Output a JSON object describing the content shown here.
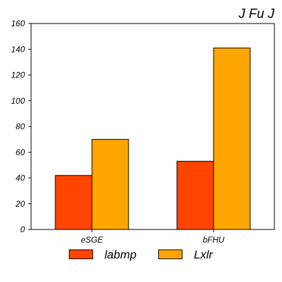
{
  "chart_data": {
    "type": "bar",
    "title": "J Fu J",
    "xlabel": "",
    "ylabel": "",
    "categories": [
      "eSGE",
      "bFHU"
    ],
    "series": [
      {
        "name": "labmp",
        "values": [
          42,
          53
        ],
        "color": "#ff4500"
      },
      {
        "name": "Lxlr",
        "values": [
          70,
          141
        ],
        "color": "#ffa500"
      }
    ],
    "ylim": [
      0,
      160
    ],
    "yticks": [
      0,
      20,
      40,
      60,
      80,
      100,
      120,
      140,
      160
    ],
    "grid": false,
    "legend_position": "bottom"
  }
}
